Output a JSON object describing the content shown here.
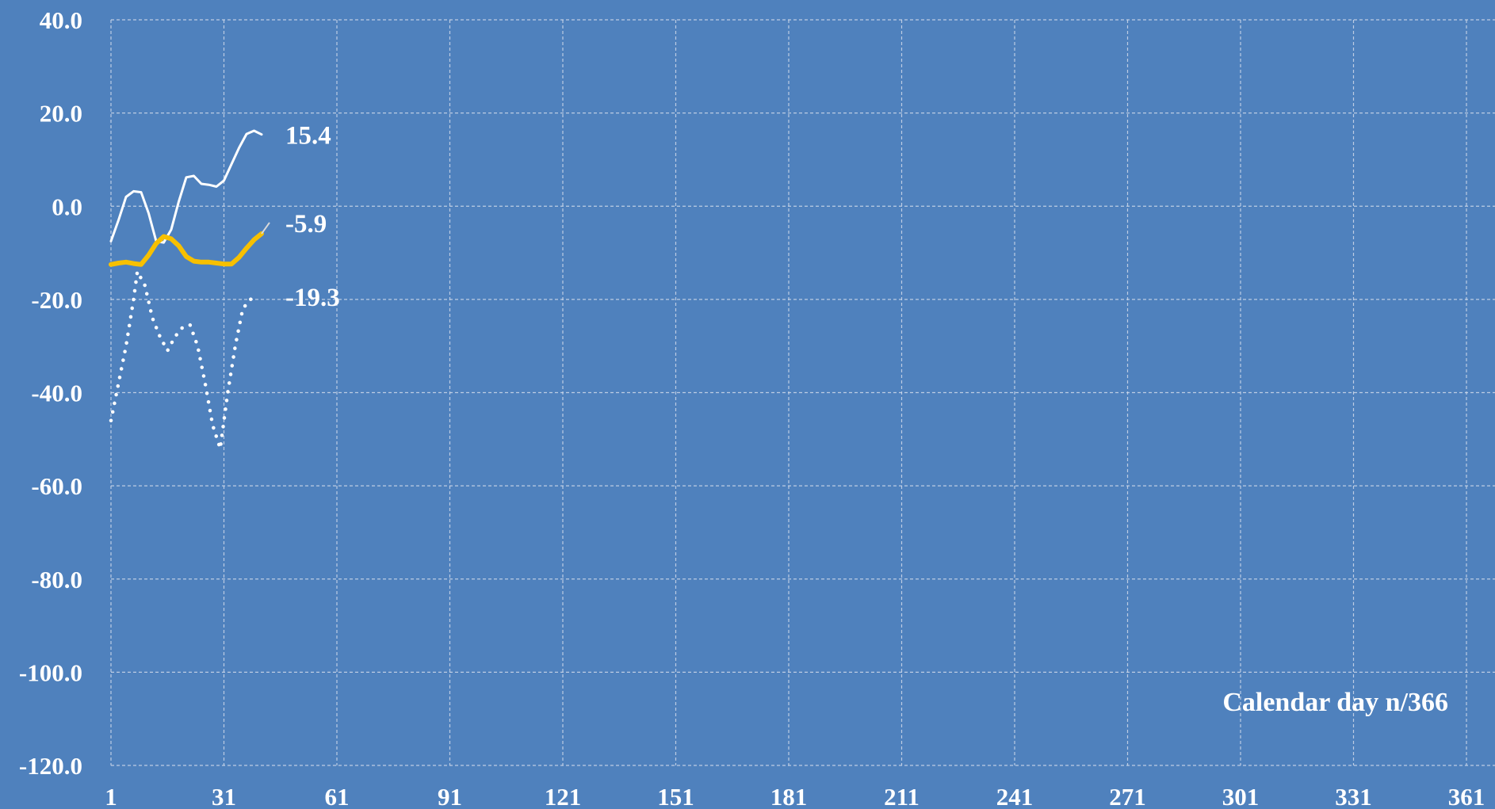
{
  "chart_data": {
    "type": "line",
    "title": "",
    "xlabel": "Calendar day n/366",
    "ylabel": "",
    "xlim": [
      1,
      366
    ],
    "ylim": [
      -120,
      40
    ],
    "x_ticks": [
      1,
      31,
      61,
      91,
      121,
      151,
      181,
      211,
      241,
      271,
      301,
      331,
      361
    ],
    "y_ticks": [
      40,
      20,
      0,
      -20,
      -40,
      -60,
      -80,
      -100,
      -120
    ],
    "y_tick_labels": [
      "40.0",
      "20.0",
      "0.0",
      "-20.0",
      "-40.0",
      "-60.0",
      "-80.0",
      "-100.0",
      "-120.0"
    ],
    "grid": true,
    "background_color": "#4f81bd",
    "series": [
      {
        "style": "solid-thin",
        "color": "#ffffff",
        "end_label": "15.4",
        "x": [
          1,
          3,
          5,
          7,
          9,
          11,
          13,
          15,
          17,
          19,
          21,
          23,
          25,
          27,
          29,
          31,
          33,
          35,
          37,
          39,
          41
        ],
        "y": [
          -7.5,
          -3,
          2,
          3.2,
          3,
          -1.5,
          -7.5,
          -7.8,
          -5,
          1,
          6.2,
          6.5,
          4.8,
          4.6,
          4.2,
          5.5,
          9,
          12.5,
          15.5,
          16.2,
          15.4
        ]
      },
      {
        "style": "solid-thick",
        "color": "#f7c000",
        "end_label": "-5.9",
        "x": [
          1,
          3,
          5,
          7,
          9,
          11,
          13,
          15,
          17,
          19,
          21,
          23,
          25,
          27,
          29,
          31,
          33,
          35,
          37,
          39,
          41
        ],
        "y": [
          -12.5,
          -12.2,
          -12,
          -12.3,
          -12.5,
          -10.5,
          -8,
          -6.5,
          -7,
          -8.5,
          -10.8,
          -11.8,
          -12,
          -12,
          -12.2,
          -12.4,
          -12.4,
          -11,
          -9,
          -7.2,
          -5.9
        ]
      },
      {
        "style": "dotted",
        "color": "#ffffff",
        "end_label": "-19.3",
        "x": [
          1,
          3,
          5,
          7,
          8,
          10,
          12,
          14,
          16,
          18,
          20,
          22,
          24,
          26,
          28,
          30,
          32,
          34,
          36,
          38,
          40
        ],
        "y": [
          -46,
          -38,
          -30,
          -20,
          -14,
          -17,
          -24,
          -28,
          -31,
          -28,
          -26,
          -25.5,
          -30,
          -38,
          -47,
          -52,
          -40,
          -30,
          -22,
          -20,
          -19.3
        ]
      }
    ]
  }
}
